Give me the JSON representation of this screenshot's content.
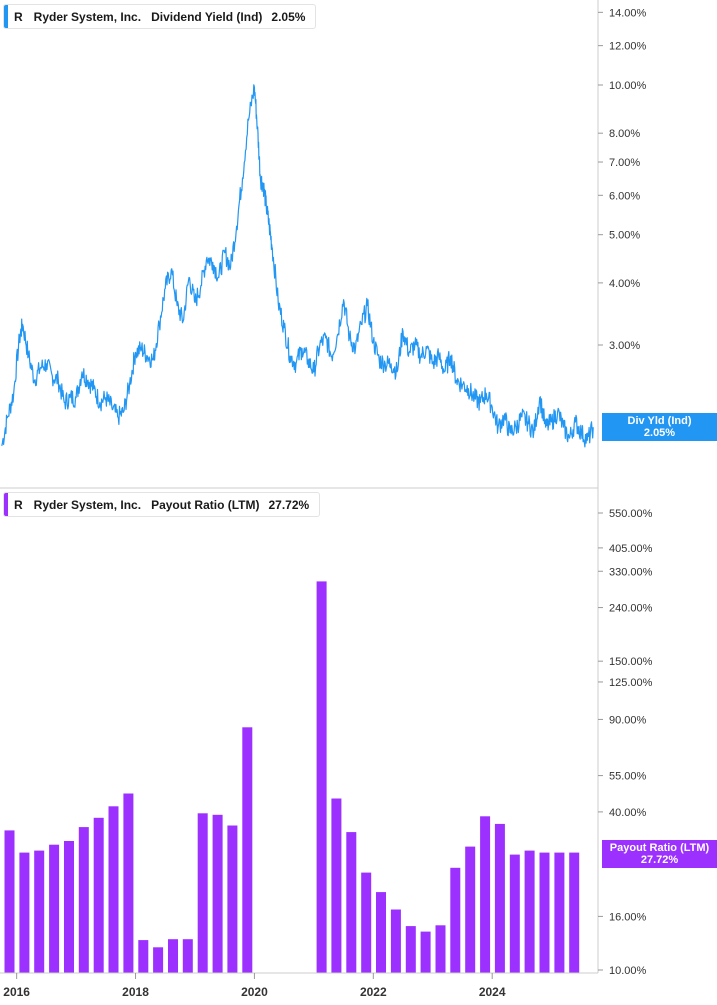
{
  "colors": {
    "yield": "#2196f3",
    "payout": "#9b30ff",
    "axis": "#cccccc",
    "grid": "#e6e6e6"
  },
  "top_legend": {
    "ticker": "R",
    "company": "Ryder System, Inc.",
    "metric": "Dividend Yield (Ind)",
    "value": "2.05%"
  },
  "bottom_legend": {
    "ticker": "R",
    "company": "Ryder System, Inc.",
    "metric": "Payout Ratio (LTM)",
    "value": "27.72%"
  },
  "top_badge": {
    "label": "Div Yld (Ind)",
    "value": "2.05%"
  },
  "bottom_badge": {
    "label": "Payout Ratio (LTM)",
    "value": "27.72%"
  },
  "chart_data": [
    {
      "type": "line",
      "title": "Ryder System, Inc. Dividend Yield (Ind)",
      "scale": "log",
      "y_ticks": [
        "14.00%",
        "12.00%",
        "10.00%",
        "8.00%",
        "7.00%",
        "6.00%",
        "5.00%",
        "4.00%",
        "3.00%"
      ],
      "y_tick_values": [
        14,
        12,
        10,
        8,
        7,
        6,
        5,
        4,
        3
      ],
      "x_range": [
        2015.75,
        2025.7
      ],
      "series": [
        {
          "name": "Dividend Yield (Ind)",
          "x": [
            2015.75,
            2015.85,
            2015.95,
            2016.05,
            2016.1,
            2016.2,
            2016.3,
            2016.4,
            2016.5,
            2016.6,
            2016.7,
            2016.8,
            2016.9,
            2017.0,
            2017.1,
            2017.2,
            2017.3,
            2017.4,
            2017.5,
            2017.6,
            2017.7,
            2017.8,
            2017.9,
            2018.0,
            2018.1,
            2018.2,
            2018.3,
            2018.4,
            2018.5,
            2018.6,
            2018.7,
            2018.8,
            2018.9,
            2019.0,
            2019.1,
            2019.2,
            2019.3,
            2019.4,
            2019.5,
            2019.6,
            2019.7,
            2019.8,
            2019.9,
            2020.0,
            2020.05,
            2020.1,
            2020.15,
            2020.2,
            2020.25,
            2020.3,
            2020.4,
            2020.5,
            2020.6,
            2020.7,
            2020.8,
            2020.9,
            2021.0,
            2021.1,
            2021.2,
            2021.3,
            2021.4,
            2021.5,
            2021.6,
            2021.7,
            2021.8,
            2021.9,
            2022.0,
            2022.1,
            2022.2,
            2022.3,
            2022.4,
            2022.5,
            2022.6,
            2022.7,
            2022.8,
            2022.9,
            2023.0,
            2023.1,
            2023.2,
            2023.3,
            2023.4,
            2023.5,
            2023.6,
            2023.7,
            2023.8,
            2023.9,
            2024.0,
            2024.1,
            2024.2,
            2024.3,
            2024.4,
            2024.5,
            2024.6,
            2024.7,
            2024.8,
            2024.9,
            2025.0,
            2025.1,
            2025.2,
            2025.3,
            2025.4,
            2025.5,
            2025.6,
            2025.7
          ],
          "values": [
            1.88,
            2.15,
            2.4,
            3.1,
            3.3,
            2.85,
            2.55,
            2.7,
            2.75,
            2.6,
            2.55,
            2.3,
            2.35,
            2.35,
            2.65,
            2.55,
            2.45,
            2.3,
            2.35,
            2.25,
            2.15,
            2.2,
            2.5,
            2.9,
            2.95,
            2.85,
            2.8,
            3.3,
            3.9,
            4.25,
            3.6,
            3.35,
            4.1,
            3.65,
            3.95,
            4.5,
            4.4,
            4.1,
            4.6,
            4.3,
            5.2,
            6.5,
            8.5,
            9.9,
            8.2,
            6.5,
            6.3,
            5.7,
            5.2,
            4.7,
            3.65,
            3.25,
            2.85,
            2.75,
            2.95,
            2.8,
            2.65,
            3.0,
            3.1,
            2.85,
            3.15,
            3.7,
            3.1,
            2.95,
            3.3,
            3.6,
            3.05,
            2.8,
            2.75,
            2.75,
            2.65,
            3.2,
            2.9,
            3.0,
            2.85,
            2.95,
            2.75,
            2.85,
            2.65,
            2.85,
            2.55,
            2.5,
            2.45,
            2.35,
            2.3,
            2.4,
            2.25,
            2.05,
            2.15,
            2.0,
            2.05,
            2.15,
            2.1,
            2.0,
            2.35,
            2.05,
            2.1,
            2.2,
            2.05,
            1.95,
            2.1,
            2.0,
            1.93,
            2.05
          ]
        }
      ],
      "last_value": "2.05%"
    },
    {
      "type": "bar",
      "title": "Ryder System, Inc. Payout Ratio (LTM)",
      "scale": "log",
      "y_ticks": [
        "550.00%",
        "405.00%",
        "330.00%",
        "240.00%",
        "150.00%",
        "125.00%",
        "90.00%",
        "55.00%",
        "40.00%",
        "16.00%",
        "10.00%"
      ],
      "y_tick_values": [
        550,
        405,
        330,
        240,
        150,
        125,
        90,
        55,
        40,
        16,
        10
      ],
      "x_ticks": [
        "2016",
        "2018",
        "2020",
        "2022",
        "2024"
      ],
      "x_tick_values": [
        2016,
        2018,
        2020,
        2022,
        2024
      ],
      "series": [
        {
          "name": "Payout Ratio (LTM)",
          "x": [
            2015.88,
            2016.13,
            2016.38,
            2016.63,
            2016.88,
            2017.13,
            2017.38,
            2017.63,
            2017.88,
            2018.13,
            2018.38,
            2018.63,
            2018.88,
            2019.13,
            2019.38,
            2019.63,
            2019.88,
            2021.13,
            2021.38,
            2021.63,
            2021.88,
            2022.13,
            2022.38,
            2022.63,
            2022.88,
            2023.13,
            2023.38,
            2023.63,
            2023.88,
            2024.13,
            2024.38,
            2024.63,
            2024.88,
            2025.13,
            2025.38
          ],
          "values": [
            34,
            28,
            28.5,
            30,
            31,
            35,
            38,
            42,
            47,
            13,
            12.2,
            13.1,
            13.1,
            39.5,
            39,
            35.5,
            84,
            302,
            45,
            33.5,
            23.5,
            19.8,
            17,
            14.7,
            14,
            14.8,
            24.5,
            29.5,
            38.5,
            36,
            27.5,
            28.5,
            28,
            28,
            28
          ]
        }
      ],
      "last_value": "27.72%"
    }
  ]
}
